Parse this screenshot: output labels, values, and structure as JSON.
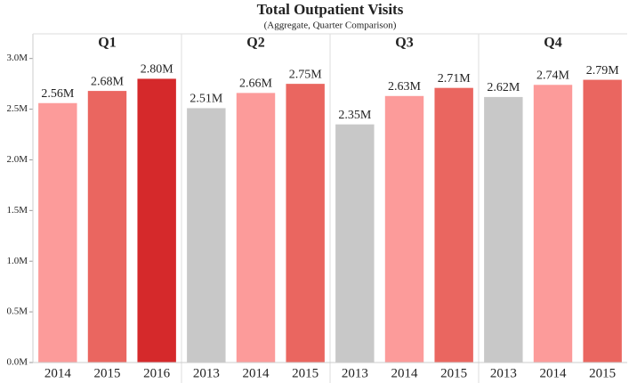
{
  "chart_data": {
    "type": "bar",
    "title": "Total Outpatient Visits",
    "subtitle": "(Aggregate, Quarter Comparison)",
    "ylim": [
      0,
      3050000
    ],
    "yticks": [
      {
        "value": 0,
        "label": "0.0M"
      },
      {
        "value": 500000,
        "label": "0.5M"
      },
      {
        "value": 1000000,
        "label": "1.0M"
      },
      {
        "value": 1500000,
        "label": "1.5M"
      },
      {
        "value": 2000000,
        "label": "2.0M"
      },
      {
        "value": 2500000,
        "label": "2.5M"
      },
      {
        "value": 3000000,
        "label": "3.0M"
      }
    ],
    "panels": [
      {
        "name": "Q1",
        "categories": [
          "2014",
          "2015",
          "2016"
        ],
        "values": [
          2560000,
          2680000,
          2800000
        ],
        "value_labels": [
          "2.56M",
          "2.68M",
          "2.80M"
        ],
        "colors": [
          "#fc9b9a",
          "#ea6660",
          "#d5292b"
        ]
      },
      {
        "name": "Q2",
        "categories": [
          "2013",
          "2014",
          "2015"
        ],
        "values": [
          2510000,
          2660000,
          2750000
        ],
        "value_labels": [
          "2.51M",
          "2.66M",
          "2.75M"
        ],
        "colors": [
          "#c8c8c8",
          "#fc9b9a",
          "#ea6660"
        ]
      },
      {
        "name": "Q3",
        "categories": [
          "2013",
          "2014",
          "2015"
        ],
        "values": [
          2350000,
          2630000,
          2710000
        ],
        "value_labels": [
          "2.35M",
          "2.63M",
          "2.71M"
        ],
        "colors": [
          "#c8c8c8",
          "#fc9b9a",
          "#ea6660"
        ]
      },
      {
        "name": "Q4",
        "categories": [
          "2013",
          "2014",
          "2015"
        ],
        "values": [
          2620000,
          2740000,
          2790000
        ],
        "value_labels": [
          "2.62M",
          "2.74M",
          "2.79M"
        ],
        "colors": [
          "#c8c8c8",
          "#fc9b9a",
          "#ea6660"
        ]
      }
    ]
  }
}
